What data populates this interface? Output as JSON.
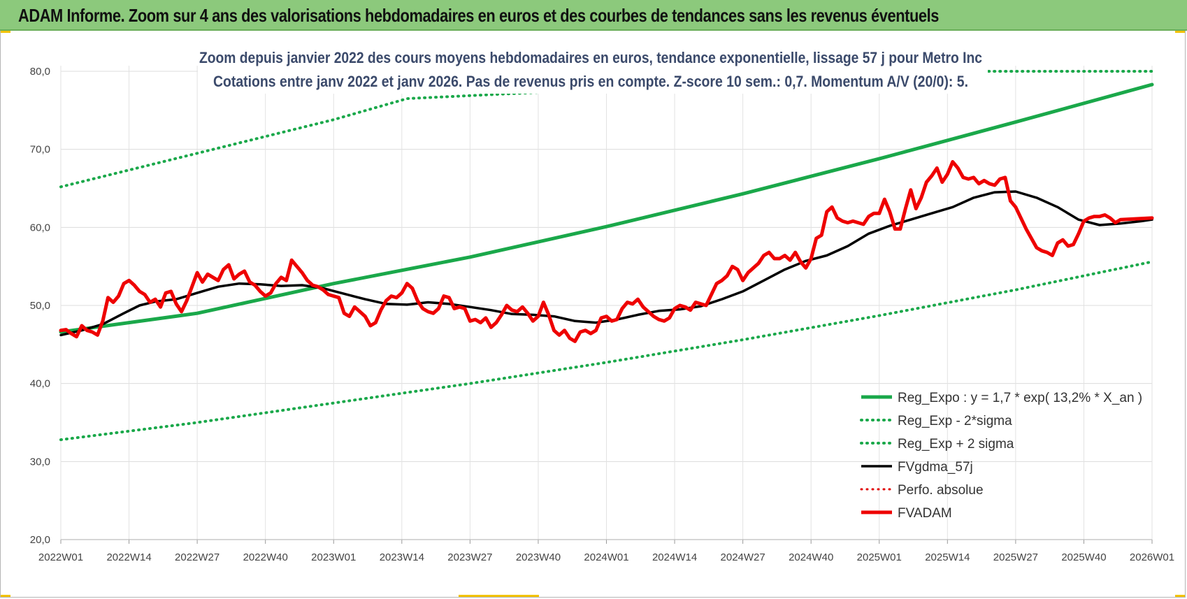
{
  "header": {
    "title": "ADAM Informe. Zoom sur 4 ans des valorisations hebdomadaires en euros et des courbes de tendances sans les revenus éventuels"
  },
  "chart_data": {
    "type": "line",
    "title": "Zoom depuis janvier 2022 des cours moyens hebdomadaires en euros, tendance exponentielle, lissage 57 j pour Metro Inc",
    "subtitle": "Cotations entre janv 2022 et janv 2026. Pas de revenus pris en compte. Z-score 10 sem.: 0,7. Momentum A/V (20/0): 5.",
    "ylim": [
      20,
      80
    ],
    "yticks": [
      "20,0",
      "30,0",
      "40,0",
      "50,0",
      "60,0",
      "70,0",
      "80,0"
    ],
    "xlim": [
      0,
      208
    ],
    "xticks": [
      {
        "label": "2022W01",
        "week": 0
      },
      {
        "label": "2022W14",
        "week": 13
      },
      {
        "label": "2022W27",
        "week": 26
      },
      {
        "label": "2022W40",
        "week": 39
      },
      {
        "label": "2023W01",
        "week": 52
      },
      {
        "label": "2023W14",
        "week": 65
      },
      {
        "label": "2023W27",
        "week": 78
      },
      {
        "label": "2023W40",
        "week": 91
      },
      {
        "label": "2024W01",
        "week": 104
      },
      {
        "label": "2024W14",
        "week": 117
      },
      {
        "label": "2024W27",
        "week": 130
      },
      {
        "label": "2024W40",
        "week": 143
      },
      {
        "label": "2025W01",
        "week": 156
      },
      {
        "label": "2025W14",
        "week": 169
      },
      {
        "label": "2025W27",
        "week": 182
      },
      {
        "label": "2025W40",
        "week": 195
      },
      {
        "label": "2026W01",
        "week": 208
      }
    ],
    "grid": true,
    "legend_position": "bottom-right",
    "series": [
      {
        "name": "Reg_Expo : y = 1,7 * exp( 13,2% *  X_an )",
        "color": "#1aa84a",
        "style": "solid",
        "width": 5,
        "points": [
          [
            0,
            46.6
          ],
          [
            26,
            49.0
          ],
          [
            52,
            52.8
          ],
          [
            78,
            56.2
          ],
          [
            104,
            60.1
          ],
          [
            130,
            64.3
          ],
          [
            156,
            68.8
          ],
          [
            182,
            73.5
          ],
          [
            208,
            78.3
          ]
        ]
      },
      {
        "name": "Reg_Exp - 2*sigma",
        "color": "#1aa84a",
        "style": "dotted",
        "width": 4,
        "points": [
          [
            0,
            32.8
          ],
          [
            26,
            35.0
          ],
          [
            52,
            37.5
          ],
          [
            78,
            40.0
          ],
          [
            104,
            42.7
          ],
          [
            130,
            45.6
          ],
          [
            156,
            48.7
          ],
          [
            182,
            52.0
          ],
          [
            208,
            55.6
          ]
        ]
      },
      {
        "name": "Reg_Exp + 2 sigma",
        "color": "#1aa84a",
        "style": "dotted",
        "width": 4,
        "points": [
          [
            0,
            65.2
          ],
          [
            26,
            69.5
          ],
          [
            52,
            73.8
          ],
          [
            66,
            76.5
          ],
          [
            176,
            80.0
          ],
          [
            208,
            80.0
          ]
        ]
      },
      {
        "name": "FVgdma_57j",
        "color": "#000000",
        "style": "solid",
        "width": 3.5,
        "points": [
          [
            0,
            46.2
          ],
          [
            4,
            46.8
          ],
          [
            8,
            47.6
          ],
          [
            12,
            49.0
          ],
          [
            15,
            50.0
          ],
          [
            18,
            50.5
          ],
          [
            22,
            50.8
          ],
          [
            26,
            51.6
          ],
          [
            30,
            52.4
          ],
          [
            34,
            52.8
          ],
          [
            38,
            52.7
          ],
          [
            42,
            52.5
          ],
          [
            46,
            52.6
          ],
          [
            50,
            52.2
          ],
          [
            54,
            51.5
          ],
          [
            58,
            50.8
          ],
          [
            62,
            50.2
          ],
          [
            66,
            50.1
          ],
          [
            70,
            50.4
          ],
          [
            74,
            50.2
          ],
          [
            78,
            49.8
          ],
          [
            82,
            49.4
          ],
          [
            86,
            48.9
          ],
          [
            90,
            48.8
          ],
          [
            94,
            48.6
          ],
          [
            98,
            48.0
          ],
          [
            102,
            47.8
          ],
          [
            106,
            48.2
          ],
          [
            110,
            48.8
          ],
          [
            114,
            49.3
          ],
          [
            118,
            49.5
          ],
          [
            122,
            49.9
          ],
          [
            126,
            50.8
          ],
          [
            130,
            51.8
          ],
          [
            134,
            53.2
          ],
          [
            138,
            54.6
          ],
          [
            142,
            55.7
          ],
          [
            146,
            56.4
          ],
          [
            150,
            57.6
          ],
          [
            154,
            59.2
          ],
          [
            158,
            60.2
          ],
          [
            162,
            61.0
          ],
          [
            166,
            61.8
          ],
          [
            170,
            62.6
          ],
          [
            174,
            63.8
          ],
          [
            178,
            64.5
          ],
          [
            182,
            64.6
          ],
          [
            186,
            63.8
          ],
          [
            190,
            62.6
          ],
          [
            194,
            61.0
          ],
          [
            198,
            60.3
          ],
          [
            202,
            60.5
          ],
          [
            206,
            60.8
          ],
          [
            208,
            61.0
          ]
        ]
      },
      {
        "name": "Perfo. absolue",
        "color": "#e00000",
        "style": "dotted",
        "width": 3,
        "points": []
      },
      {
        "name": "FVADAM",
        "color": "#ee0000",
        "style": "solid",
        "width": 5,
        "points": [
          [
            0,
            46.8
          ],
          [
            1,
            46.9
          ],
          [
            2,
            46.4
          ],
          [
            3,
            46.0
          ],
          [
            4,
            47.4
          ],
          [
            5,
            46.8
          ],
          [
            6,
            46.6
          ],
          [
            7,
            46.2
          ],
          [
            8,
            48.0
          ],
          [
            9,
            51.0
          ],
          [
            10,
            50.4
          ],
          [
            11,
            51.2
          ],
          [
            12,
            52.8
          ],
          [
            13,
            53.2
          ],
          [
            14,
            52.6
          ],
          [
            15,
            51.8
          ],
          [
            16,
            51.4
          ],
          [
            17,
            50.4
          ],
          [
            18,
            50.8
          ],
          [
            19,
            49.8
          ],
          [
            20,
            51.6
          ],
          [
            21,
            51.8
          ],
          [
            22,
            50.2
          ],
          [
            23,
            49.2
          ],
          [
            24,
            50.6
          ],
          [
            25,
            52.4
          ],
          [
            26,
            54.2
          ],
          [
            27,
            53.0
          ],
          [
            28,
            54.0
          ],
          [
            29,
            53.6
          ],
          [
            30,
            53.2
          ],
          [
            31,
            54.6
          ],
          [
            32,
            55.2
          ],
          [
            33,
            53.4
          ],
          [
            34,
            54.0
          ],
          [
            35,
            54.4
          ],
          [
            36,
            53.0
          ],
          [
            37,
            52.6
          ],
          [
            38,
            51.8
          ],
          [
            39,
            51.2
          ],
          [
            40,
            51.6
          ],
          [
            41,
            52.8
          ],
          [
            42,
            53.6
          ],
          [
            43,
            53.2
          ],
          [
            44,
            55.8
          ],
          [
            45,
            55.0
          ],
          [
            46,
            54.2
          ],
          [
            47,
            53.2
          ],
          [
            48,
            52.6
          ],
          [
            49,
            52.4
          ],
          [
            50,
            52.0
          ],
          [
            51,
            51.4
          ],
          [
            52,
            51.2
          ],
          [
            53,
            51.0
          ],
          [
            54,
            49.0
          ],
          [
            55,
            48.6
          ],
          [
            56,
            49.8
          ],
          [
            57,
            49.2
          ],
          [
            58,
            48.6
          ],
          [
            59,
            47.4
          ],
          [
            60,
            47.8
          ],
          [
            61,
            49.4
          ],
          [
            62,
            50.6
          ],
          [
            63,
            51.2
          ],
          [
            64,
            51.0
          ],
          [
            65,
            51.6
          ],
          [
            66,
            52.8
          ],
          [
            67,
            52.2
          ],
          [
            68,
            50.6
          ],
          [
            69,
            49.6
          ],
          [
            70,
            49.2
          ],
          [
            71,
            49.0
          ],
          [
            72,
            49.6
          ],
          [
            73,
            51.2
          ],
          [
            74,
            51.0
          ],
          [
            75,
            49.6
          ],
          [
            76,
            49.8
          ],
          [
            77,
            49.6
          ],
          [
            78,
            48.0
          ],
          [
            79,
            48.2
          ],
          [
            80,
            47.8
          ],
          [
            81,
            48.4
          ],
          [
            82,
            47.2
          ],
          [
            83,
            47.8
          ],
          [
            84,
            48.8
          ],
          [
            85,
            50.0
          ],
          [
            86,
            49.4
          ],
          [
            87,
            49.2
          ],
          [
            88,
            49.8
          ],
          [
            89,
            49.0
          ],
          [
            90,
            48.0
          ],
          [
            91,
            48.6
          ],
          [
            92,
            50.4
          ],
          [
            93,
            48.8
          ],
          [
            94,
            46.8
          ],
          [
            95,
            46.2
          ],
          [
            96,
            46.8
          ],
          [
            97,
            45.8
          ],
          [
            98,
            45.4
          ],
          [
            99,
            46.6
          ],
          [
            100,
            46.8
          ],
          [
            101,
            46.4
          ],
          [
            102,
            46.8
          ],
          [
            103,
            48.4
          ],
          [
            104,
            48.6
          ],
          [
            105,
            48.0
          ],
          [
            106,
            48.2
          ],
          [
            107,
            49.6
          ],
          [
            108,
            50.4
          ],
          [
            109,
            50.2
          ],
          [
            110,
            50.8
          ],
          [
            111,
            49.8
          ],
          [
            112,
            49.2
          ],
          [
            113,
            48.6
          ],
          [
            114,
            48.2
          ],
          [
            115,
            48.0
          ],
          [
            116,
            48.4
          ],
          [
            117,
            49.6
          ],
          [
            118,
            50.0
          ],
          [
            119,
            49.8
          ],
          [
            120,
            49.4
          ],
          [
            121,
            50.4
          ],
          [
            122,
            50.2
          ],
          [
            123,
            50.0
          ],
          [
            124,
            51.4
          ],
          [
            125,
            52.8
          ],
          [
            126,
            53.2
          ],
          [
            127,
            53.8
          ],
          [
            128,
            55.0
          ],
          [
            129,
            54.6
          ],
          [
            130,
            53.2
          ],
          [
            131,
            54.2
          ],
          [
            132,
            54.8
          ],
          [
            133,
            55.4
          ],
          [
            134,
            56.4
          ],
          [
            135,
            56.8
          ],
          [
            136,
            56.0
          ],
          [
            137,
            56.0
          ],
          [
            138,
            56.4
          ],
          [
            139,
            55.8
          ],
          [
            140,
            56.8
          ],
          [
            141,
            55.6
          ],
          [
            142,
            54.8
          ],
          [
            143,
            56.0
          ],
          [
            144,
            58.6
          ],
          [
            145,
            59.0
          ],
          [
            146,
            62.0
          ],
          [
            147,
            62.6
          ],
          [
            148,
            61.2
          ],
          [
            149,
            60.8
          ],
          [
            150,
            60.6
          ],
          [
            151,
            60.8
          ],
          [
            152,
            60.6
          ],
          [
            153,
            60.4
          ],
          [
            154,
            61.4
          ],
          [
            155,
            61.8
          ],
          [
            156,
            61.8
          ],
          [
            157,
            63.6
          ],
          [
            158,
            62.0
          ],
          [
            159,
            59.8
          ],
          [
            160,
            59.8
          ],
          [
            161,
            62.4
          ],
          [
            162,
            64.8
          ],
          [
            163,
            62.4
          ],
          [
            164,
            63.8
          ],
          [
            165,
            65.8
          ],
          [
            166,
            66.6
          ],
          [
            167,
            67.6
          ],
          [
            168,
            65.8
          ],
          [
            169,
            66.8
          ],
          [
            170,
            68.4
          ],
          [
            171,
            67.6
          ],
          [
            172,
            66.4
          ],
          [
            173,
            66.2
          ],
          [
            174,
            66.4
          ],
          [
            175,
            65.6
          ],
          [
            176,
            66.0
          ],
          [
            177,
            65.6
          ],
          [
            178,
            65.4
          ],
          [
            179,
            66.2
          ],
          [
            180,
            66.4
          ],
          [
            181,
            63.4
          ],
          [
            182,
            62.6
          ],
          [
            183,
            61.2
          ],
          [
            184,
            59.8
          ],
          [
            185,
            58.6
          ],
          [
            186,
            57.4
          ],
          [
            187,
            57.0
          ],
          [
            188,
            56.8
          ],
          [
            189,
            56.4
          ],
          [
            190,
            58.0
          ],
          [
            191,
            58.4
          ],
          [
            192,
            57.6
          ],
          [
            193,
            57.8
          ],
          [
            194,
            59.2
          ],
          [
            195,
            60.8
          ],
          [
            196,
            61.2
          ],
          [
            197,
            61.4
          ],
          [
            198,
            61.4
          ],
          [
            199,
            61.6
          ],
          [
            200,
            61.2
          ],
          [
            201,
            60.6
          ],
          [
            202,
            61.0
          ],
          [
            208,
            61.2
          ]
        ]
      }
    ]
  }
}
